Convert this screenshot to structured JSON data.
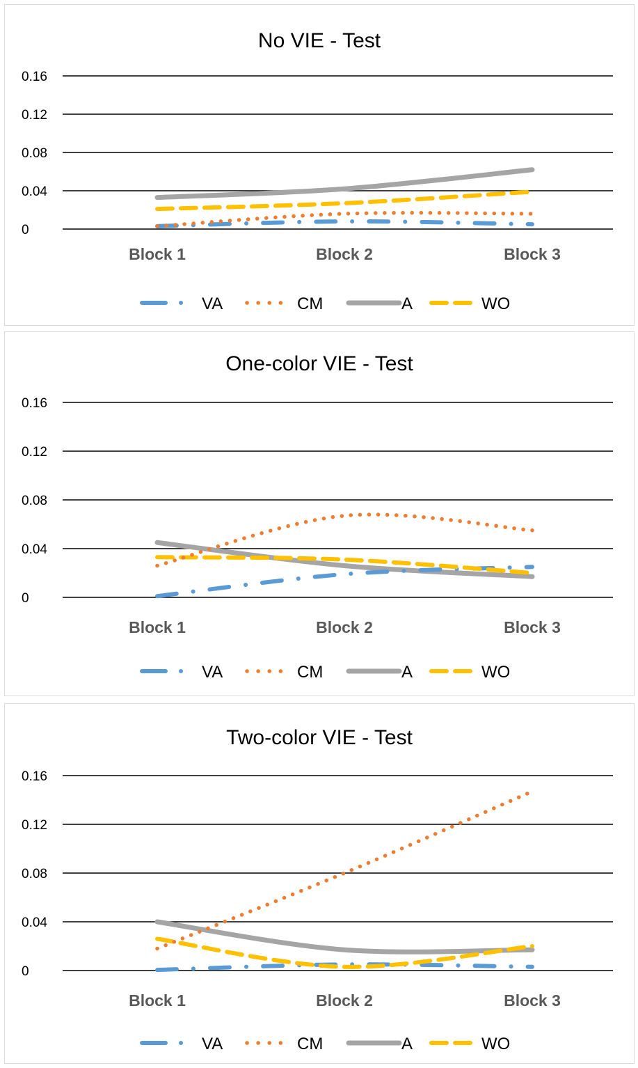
{
  "chart_data": [
    {
      "type": "line",
      "title": "No VIE  - Test",
      "categories": [
        "Block 1",
        "Block 2",
        "Block 3"
      ],
      "y_ticks": [
        "0",
        "0.04",
        "0.08",
        "0.12",
        "0.16"
      ],
      "ylim": [
        0,
        0.16
      ],
      "grid": true,
      "legend_position": "bottom",
      "series": [
        {
          "name": "VA",
          "values": [
            0.003,
            0.008,
            0.005
          ]
        },
        {
          "name": "CM",
          "values": [
            0.003,
            0.016,
            0.016
          ]
        },
        {
          "name": "A",
          "values": [
            0.033,
            0.042,
            0.062
          ]
        },
        {
          "name": "WO",
          "values": [
            0.021,
            0.027,
            0.039
          ]
        }
      ]
    },
    {
      "type": "line",
      "title": "One-color VIE - Test",
      "categories": [
        "Block 1",
        "Block 2",
        "Block 3"
      ],
      "y_ticks": [
        "0",
        "0.04",
        "0.08",
        "0.12",
        "0.16"
      ],
      "ylim": [
        0,
        0.16
      ],
      "grid": true,
      "legend_position": "bottom",
      "series": [
        {
          "name": "VA",
          "values": [
            0.001,
            0.019,
            0.025
          ]
        },
        {
          "name": "CM",
          "values": [
            0.026,
            0.067,
            0.055
          ]
        },
        {
          "name": "A",
          "values": [
            0.045,
            0.026,
            0.017
          ]
        },
        {
          "name": "WO",
          "values": [
            0.033,
            0.031,
            0.02
          ]
        }
      ]
    },
    {
      "type": "line",
      "title": "Two-color VIE  - Test",
      "categories": [
        "Block 1",
        "Block 2",
        "Block 3"
      ],
      "y_ticks": [
        "0",
        "0.04",
        "0.08",
        "0.12",
        "0.16"
      ],
      "ylim": [
        0,
        0.16
      ],
      "grid": true,
      "legend_position": "bottom",
      "series": [
        {
          "name": "VA",
          "values": [
            0.0005,
            0.005,
            0.003
          ]
        },
        {
          "name": "CM",
          "values": [
            0.018,
            0.08,
            0.147
          ]
        },
        {
          "name": "A",
          "values": [
            0.04,
            0.017,
            0.017
          ]
        },
        {
          "name": "WO",
          "values": [
            0.026,
            0.003,
            0.02
          ]
        }
      ]
    }
  ],
  "series_styles": {
    "VA": {
      "color": "#5B9BD5",
      "style": "dash-dot"
    },
    "CM": {
      "color": "#ED7D31",
      "style": "dot"
    },
    "A": {
      "color": "#A5A5A5",
      "style": "solid"
    },
    "WO": {
      "color": "#FFC000",
      "style": "dash"
    }
  }
}
